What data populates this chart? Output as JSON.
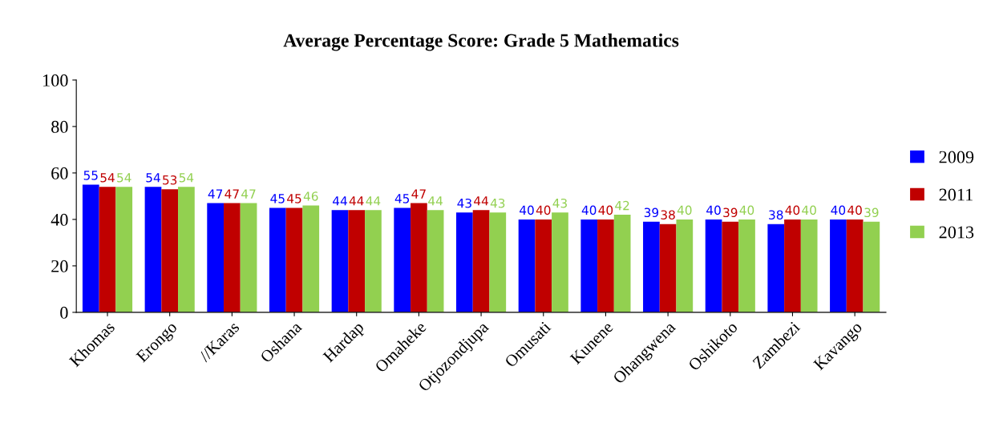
{
  "chart_data": {
    "type": "bar",
    "title": "Average Percentage Score: Grade 5 Mathematics",
    "categories": [
      "Khomas",
      "Erongo",
      "//Karas",
      "Oshana",
      "Hardap",
      "Omaheke",
      "Otjozondjupa",
      "Omusati",
      "Kunene",
      "Ohangwena",
      "Oshikoto",
      "Zambezi",
      "Kavango"
    ],
    "series": [
      {
        "name": "2009",
        "color": "#0000ff",
        "values": [
          55,
          54,
          47,
          45,
          44,
          45,
          43,
          40,
          40,
          39,
          40,
          38,
          40
        ]
      },
      {
        "name": "2011",
        "color": "#c00000",
        "values": [
          54,
          53,
          47,
          45,
          44,
          47,
          44,
          40,
          40,
          38,
          39,
          40,
          40
        ]
      },
      {
        "name": "2013",
        "color": "#92d050",
        "values": [
          54,
          54,
          47,
          46,
          44,
          44,
          43,
          43,
          42,
          40,
          40,
          40,
          39
        ]
      }
    ],
    "ylim": [
      0,
      100
    ],
    "yticks": [
      0,
      20,
      40,
      60,
      80,
      100
    ],
    "grid": false,
    "legend": "right",
    "data_labels": true
  }
}
